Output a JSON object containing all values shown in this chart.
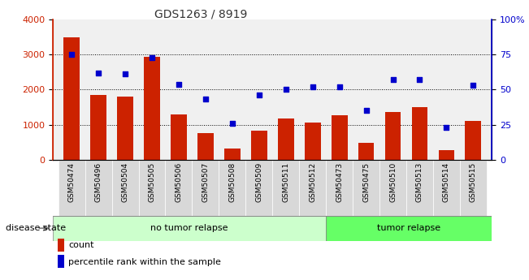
{
  "title": "GDS1263 / 8919",
  "categories": [
    "GSM50474",
    "GSM50496",
    "GSM50504",
    "GSM50505",
    "GSM50506",
    "GSM50507",
    "GSM50508",
    "GSM50509",
    "GSM50511",
    "GSM50512",
    "GSM50473",
    "GSM50475",
    "GSM50510",
    "GSM50513",
    "GSM50514",
    "GSM50515"
  ],
  "bar_values": [
    3500,
    1850,
    1800,
    2930,
    1280,
    750,
    310,
    830,
    1180,
    1060,
    1260,
    480,
    1370,
    1510,
    280,
    1110
  ],
  "scatter_values": [
    75,
    62,
    61,
    73,
    54,
    43,
    26,
    46,
    50,
    52,
    52,
    35,
    57,
    57,
    23,
    53
  ],
  "no_tumor_count": 10,
  "tumor_count": 6,
  "bar_color": "#cc2200",
  "scatter_color": "#0000cc",
  "no_tumor_color": "#ccffcc",
  "tumor_color": "#66ff66",
  "xtick_bg_color": "#d8d8d8",
  "plot_bg_color": "#f0f0f0",
  "left_ylim": [
    0,
    4000
  ],
  "right_ylim": [
    0,
    100
  ],
  "left_yticks": [
    0,
    1000,
    2000,
    3000,
    4000
  ],
  "right_yticks": [
    0,
    25,
    50,
    75,
    100
  ],
  "right_yticklabels": [
    "0",
    "25",
    "50",
    "75",
    "100%"
  ],
  "grid_values": [
    1000,
    2000,
    3000
  ],
  "title_color": "#333333",
  "disease_state_label": "disease state",
  "no_tumor_label": "no tumor relapse",
  "tumor_label": "tumor relapse",
  "legend_count": "count",
  "legend_percentile": "percentile rank within the sample"
}
